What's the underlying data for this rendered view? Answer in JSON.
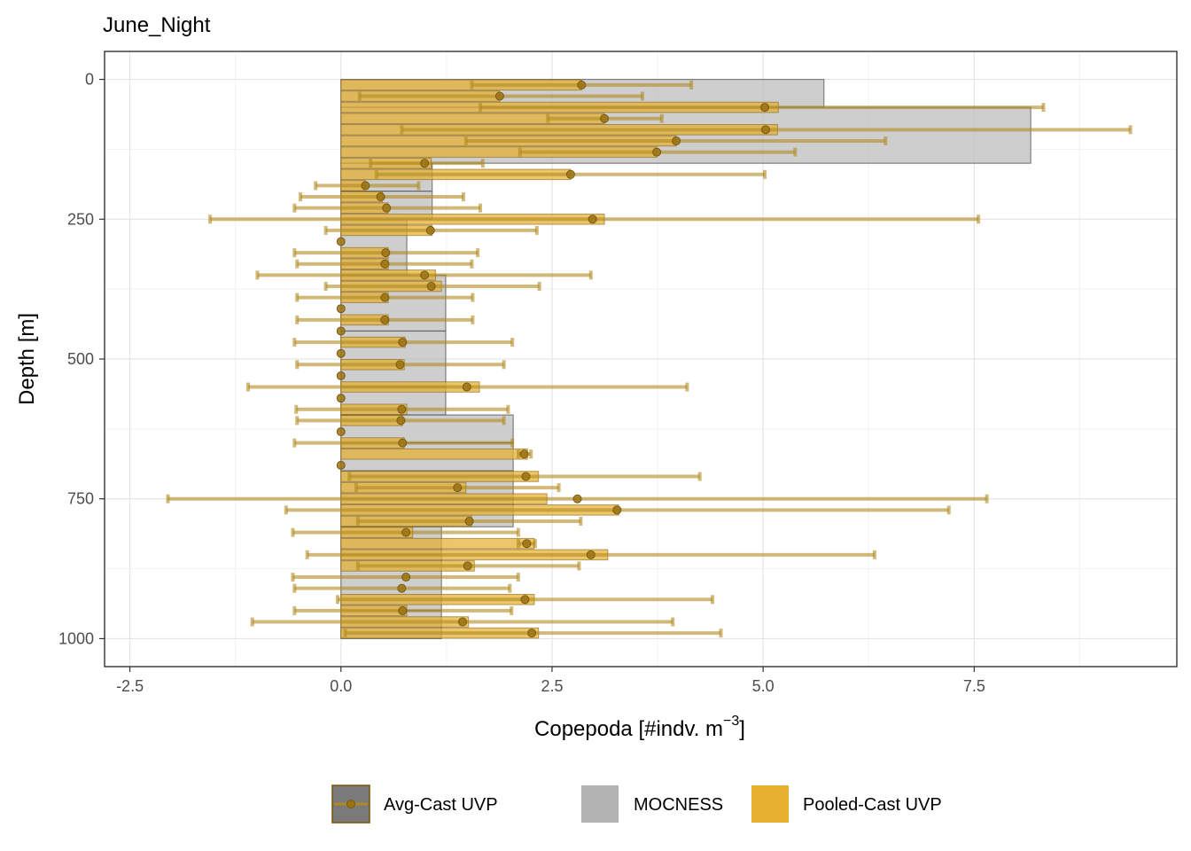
{
  "chart_data": {
    "type": "bar",
    "title": "June_Night",
    "xlabel": "Copepoda [#indv. m",
    "xlabel_sup": "−3",
    "xlabel_end": "]",
    "ylabel": "Depth [m]",
    "xlim": [
      -2.8,
      9.9
    ],
    "ylim": [
      1050,
      -50
    ],
    "y_reversed": true,
    "grid": true,
    "x_ticks": [
      -2.5,
      0.0,
      2.5,
      5.0,
      7.5
    ],
    "x_tick_labels": [
      "-2.5",
      "0.0",
      "2.5",
      "5.0",
      "7.5"
    ],
    "y_ticks": [
      0,
      250,
      500,
      750,
      1000
    ],
    "y_tick_labels": [
      "0",
      "250",
      "500",
      "750",
      "1000"
    ],
    "legend_position": "bottom",
    "colors": {
      "mocness": "#bdbdbd",
      "pooled": "#e8b030",
      "avg": "#b08a20",
      "avg_point": "#9a7212"
    },
    "series": [
      {
        "name": "MOCNESS",
        "kind": "bar",
        "bars": [
          {
            "y0": 0,
            "y1": 50,
            "value": 5.72
          },
          {
            "y0": 50,
            "y1": 150,
            "value": 8.17
          },
          {
            "y0": 150,
            "y1": 200,
            "value": 1.08
          },
          {
            "y0": 200,
            "y1": 250,
            "value": 1.08
          },
          {
            "y0": 250,
            "y1": 350,
            "value": 0.78
          },
          {
            "y0": 350,
            "y1": 450,
            "value": 1.24
          },
          {
            "y0": 450,
            "y1": 550,
            "value": 1.24
          },
          {
            "y0": 550,
            "y1": 600,
            "value": 1.24
          },
          {
            "y0": 600,
            "y1": 650,
            "value": 2.04
          },
          {
            "y0": 650,
            "y1": 700,
            "value": 2.04
          },
          {
            "y0": 700,
            "y1": 750,
            "value": 2.04
          },
          {
            "y0": 750,
            "y1": 800,
            "value": 2.04
          },
          {
            "y0": 800,
            "y1": 850,
            "value": 1.19
          },
          {
            "y0": 850,
            "y1": 950,
            "value": 1.19
          },
          {
            "y0": 950,
            "y1": 1000,
            "value": 1.19
          }
        ]
      },
      {
        "name": "Pooled-Cast UVP",
        "kind": "bar",
        "bars": [
          {
            "y": 10,
            "value": 2.85
          },
          {
            "y": 30,
            "value": 1.88
          },
          {
            "y": 50,
            "value": 5.18
          },
          {
            "y": 70,
            "value": 3.12
          },
          {
            "y": 90,
            "value": 5.17
          },
          {
            "y": 110,
            "value": 3.97
          },
          {
            "y": 130,
            "value": 3.74
          },
          {
            "y": 150,
            "value": 1.07
          },
          {
            "y": 170,
            "value": 2.72
          },
          {
            "y": 190,
            "value": 0.29
          },
          {
            "y": 210,
            "value": 0.49
          },
          {
            "y": 230,
            "value": 0.56
          },
          {
            "y": 250,
            "value": 3.12
          },
          {
            "y": 270,
            "value": 1.08
          },
          {
            "y": 290,
            "value": 0.0
          },
          {
            "y": 310,
            "value": 0.56
          },
          {
            "y": 330,
            "value": 0.56
          },
          {
            "y": 350,
            "value": 1.12
          },
          {
            "y": 370,
            "value": 1.19
          },
          {
            "y": 390,
            "value": 0.56
          },
          {
            "y": 410,
            "value": 0.0
          },
          {
            "y": 430,
            "value": 0.56
          },
          {
            "y": 450,
            "value": 0.0
          },
          {
            "y": 470,
            "value": 0.76
          },
          {
            "y": 490,
            "value": 0.0
          },
          {
            "y": 510,
            "value": 0.75
          },
          {
            "y": 530,
            "value": 0.0
          },
          {
            "y": 550,
            "value": 1.64
          },
          {
            "y": 570,
            "value": 0.0
          },
          {
            "y": 590,
            "value": 0.78
          },
          {
            "y": 610,
            "value": 0.73
          },
          {
            "y": 630,
            "value": 0.0
          },
          {
            "y": 650,
            "value": 0.75
          },
          {
            "y": 670,
            "value": 2.21
          },
          {
            "y": 690,
            "value": 0.0
          },
          {
            "y": 710,
            "value": 2.34
          },
          {
            "y": 730,
            "value": 1.48
          },
          {
            "y": 750,
            "value": 2.44
          },
          {
            "y": 770,
            "value": 3.29
          },
          {
            "y": 790,
            "value": 1.55
          },
          {
            "y": 810,
            "value": 0.85
          },
          {
            "y": 830,
            "value": 2.29
          },
          {
            "y": 850,
            "value": 3.16
          },
          {
            "y": 870,
            "value": 1.58
          },
          {
            "y": 890,
            "value": 0.0
          },
          {
            "y": 910,
            "value": 0.0
          },
          {
            "y": 930,
            "value": 2.29
          },
          {
            "y": 950,
            "value": 0.78
          },
          {
            "y": 970,
            "value": 1.51
          },
          {
            "y": 990,
            "value": 2.34
          }
        ]
      },
      {
        "name": "Avg-Cast UVP",
        "kind": "pointrange",
        "points": [
          {
            "y": 10,
            "mean": 2.85,
            "lo": 1.55,
            "hi": 4.15
          },
          {
            "y": 30,
            "mean": 1.88,
            "lo": 0.22,
            "hi": 3.57
          },
          {
            "y": 50,
            "mean": 5.02,
            "lo": 1.65,
            "hi": 8.32
          },
          {
            "y": 70,
            "mean": 3.12,
            "lo": 2.45,
            "hi": 3.8
          },
          {
            "y": 90,
            "mean": 5.03,
            "lo": 0.72,
            "hi": 9.35
          },
          {
            "y": 110,
            "mean": 3.97,
            "lo": 1.48,
            "hi": 6.45
          },
          {
            "y": 130,
            "mean": 3.74,
            "lo": 2.12,
            "hi": 5.38
          },
          {
            "y": 150,
            "mean": 0.99,
            "lo": 0.35,
            "hi": 1.68
          },
          {
            "y": 170,
            "mean": 2.72,
            "lo": 0.42,
            "hi": 5.02
          },
          {
            "y": 190,
            "mean": 0.29,
            "lo": -0.3,
            "hi": 0.92
          },
          {
            "y": 210,
            "mean": 0.47,
            "lo": -0.48,
            "hi": 1.45
          },
          {
            "y": 230,
            "mean": 0.54,
            "lo": -0.55,
            "hi": 1.65
          },
          {
            "y": 250,
            "mean": 2.98,
            "lo": -1.55,
            "hi": 7.55
          },
          {
            "y": 270,
            "mean": 1.06,
            "lo": -0.18,
            "hi": 2.32
          },
          {
            "y": 290,
            "mean": 0.0,
            "lo": 0.0,
            "hi": 0.0
          },
          {
            "y": 310,
            "mean": 0.53,
            "lo": -0.55,
            "hi": 1.62
          },
          {
            "y": 330,
            "mean": 0.52,
            "lo": -0.52,
            "hi": 1.55
          },
          {
            "y": 350,
            "mean": 0.99,
            "lo": -0.99,
            "hi": 2.96
          },
          {
            "y": 370,
            "mean": 1.07,
            "lo": -0.18,
            "hi": 2.35
          },
          {
            "y": 390,
            "mean": 0.52,
            "lo": -0.52,
            "hi": 1.56
          },
          {
            "y": 410,
            "mean": 0.0,
            "lo": 0.0,
            "hi": 0.0
          },
          {
            "y": 430,
            "mean": 0.52,
            "lo": -0.52,
            "hi": 1.56
          },
          {
            "y": 450,
            "mean": 0.0,
            "lo": 0.0,
            "hi": 0.0
          },
          {
            "y": 470,
            "mean": 0.73,
            "lo": -0.55,
            "hi": 2.03
          },
          {
            "y": 490,
            "mean": 0.0,
            "lo": 0.0,
            "hi": 0.0
          },
          {
            "y": 510,
            "mean": 0.7,
            "lo": -0.52,
            "hi": 1.93
          },
          {
            "y": 530,
            "mean": 0.0,
            "lo": 0.0,
            "hi": 0.0
          },
          {
            "y": 550,
            "mean": 1.49,
            "lo": -1.1,
            "hi": 4.1
          },
          {
            "y": 570,
            "mean": 0.0,
            "lo": 0.0,
            "hi": 0.0
          },
          {
            "y": 590,
            "mean": 0.72,
            "lo": -0.53,
            "hi": 1.98
          },
          {
            "y": 610,
            "mean": 0.71,
            "lo": -0.52,
            "hi": 1.93
          },
          {
            "y": 630,
            "mean": 0.0,
            "lo": 0.0,
            "hi": 0.0
          },
          {
            "y": 650,
            "mean": 0.73,
            "lo": -0.55,
            "hi": 2.03
          },
          {
            "y": 670,
            "mean": 2.17,
            "lo": 2.1,
            "hi": 2.25
          },
          {
            "y": 690,
            "mean": 0.0,
            "lo": 0.0,
            "hi": 0.0
          },
          {
            "y": 710,
            "mean": 2.19,
            "lo": 0.1,
            "hi": 4.25
          },
          {
            "y": 730,
            "mean": 1.38,
            "lo": 0.18,
            "hi": 2.58
          },
          {
            "y": 750,
            "mean": 2.8,
            "lo": -2.05,
            "hi": 7.65
          },
          {
            "y": 770,
            "mean": 3.27,
            "lo": -0.65,
            "hi": 7.2
          },
          {
            "y": 790,
            "mean": 1.52,
            "lo": 0.2,
            "hi": 2.84
          },
          {
            "y": 810,
            "mean": 0.77,
            "lo": -0.57,
            "hi": 2.1
          },
          {
            "y": 830,
            "mean": 2.2,
            "lo": 2.1,
            "hi": 2.3
          },
          {
            "y": 850,
            "mean": 2.96,
            "lo": -0.4,
            "hi": 6.32
          },
          {
            "y": 870,
            "mean": 1.5,
            "lo": 0.2,
            "hi": 2.82
          },
          {
            "y": 890,
            "mean": 0.77,
            "lo": -0.57,
            "hi": 2.1
          },
          {
            "y": 910,
            "mean": 0.72,
            "lo": -0.55,
            "hi": 2.0
          },
          {
            "y": 930,
            "mean": 2.18,
            "lo": -0.04,
            "hi": 4.4
          },
          {
            "y": 950,
            "mean": 0.73,
            "lo": -0.55,
            "hi": 2.02
          },
          {
            "y": 970,
            "mean": 1.44,
            "lo": -1.05,
            "hi": 3.93
          },
          {
            "y": 990,
            "mean": 2.26,
            "lo": 0.05,
            "hi": 4.5
          }
        ]
      }
    ],
    "legend": [
      {
        "key": "avg",
        "label": "Avg-Cast UVP"
      },
      {
        "key": "mocness",
        "label": "MOCNESS"
      },
      {
        "key": "pooled",
        "label": "Pooled-Cast UVP"
      }
    ]
  }
}
